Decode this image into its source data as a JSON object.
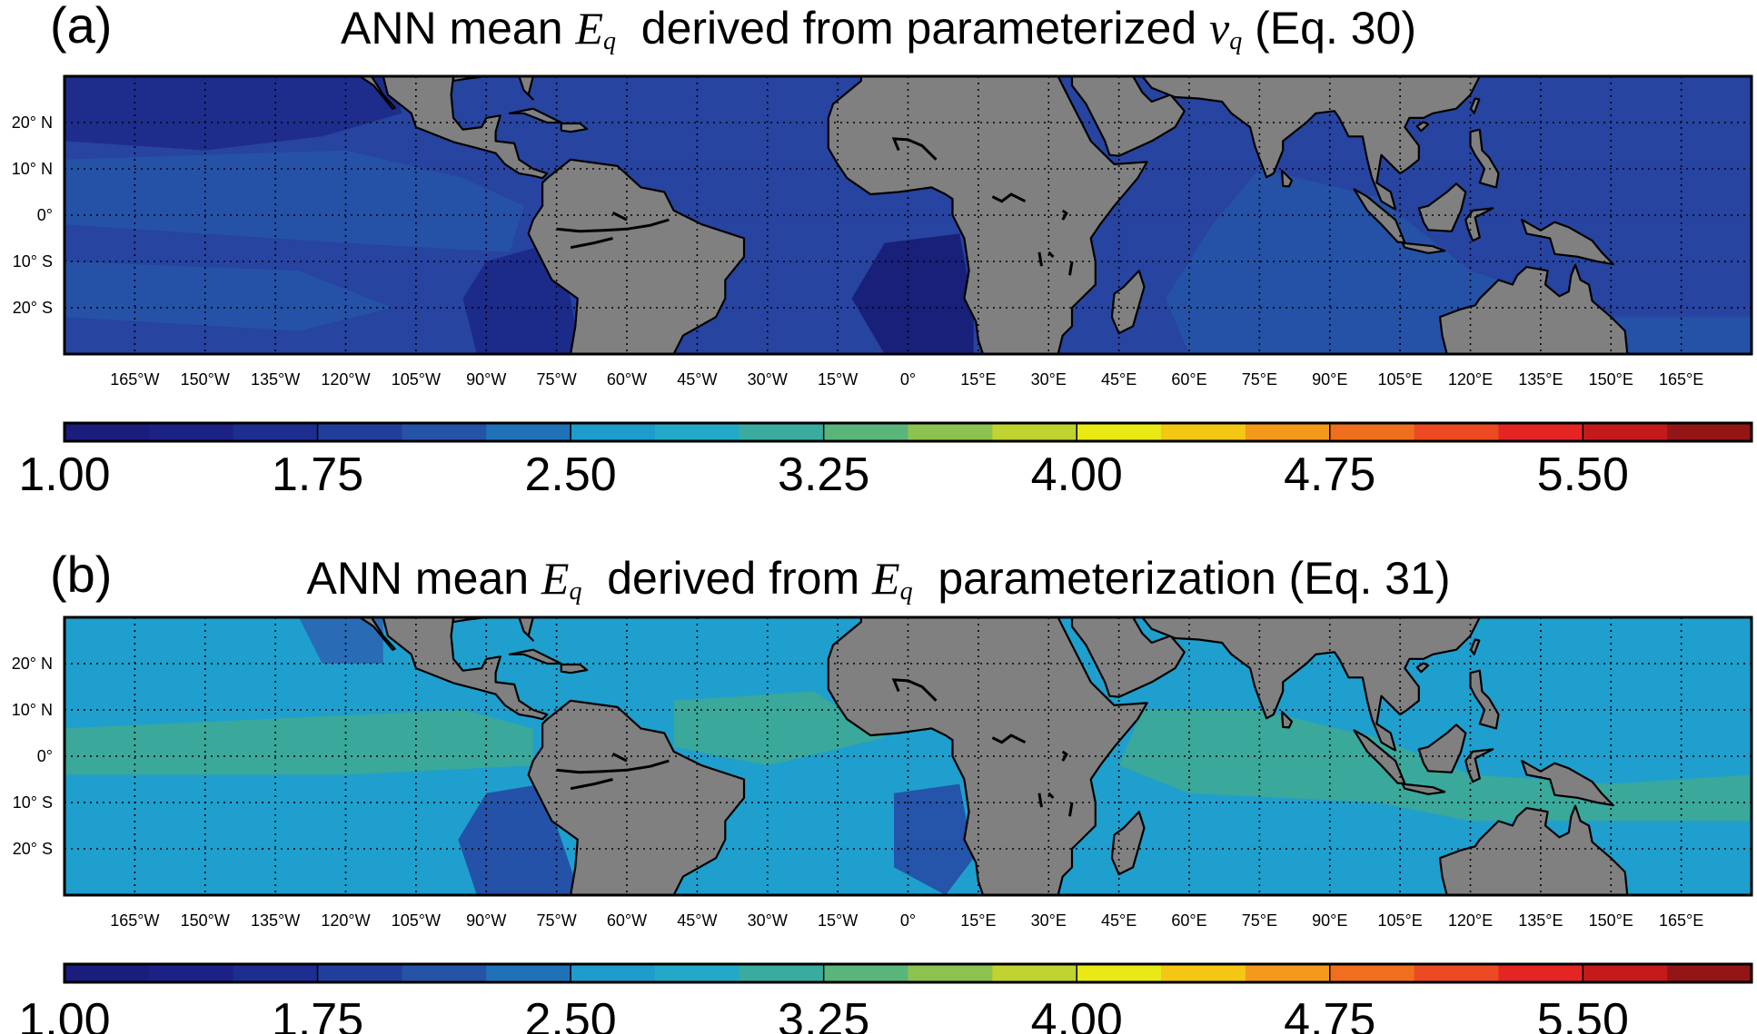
{
  "panels": [
    {
      "id": "a",
      "label": "(a)",
      "title_pre": "ANN mean ",
      "title_var": "E",
      "title_sub": "q",
      "title_mid": "  derived from parameterized ",
      "title_var2": "v",
      "title_sub2": "q",
      "title_post": " (Eq. 30)",
      "ocean_base": "#2744a0",
      "ocean_patches": [
        {
          "name": "north-pacific-low",
          "color": "#1e2d8c"
        },
        {
          "name": "east-pacific-band",
          "color": "#2552a6"
        },
        {
          "name": "south-atlantic-low",
          "color": "#182079"
        },
        {
          "name": "peru-low",
          "color": "#1c2a8a"
        }
      ]
    },
    {
      "id": "b",
      "label": "(b)",
      "title_pre": "ANN mean ",
      "title_var": "E",
      "title_sub": "q",
      "title_mid": "  derived from ",
      "title_var2": "E",
      "title_sub2": "q",
      "title_post": "  parameterization (Eq. 31)",
      "ocean_base": "#1f9fcd",
      "ocean_patches": [
        {
          "name": "tropical-band",
          "color": "#3aa89a"
        },
        {
          "name": "north-pacific-low",
          "color": "#2a6bb5"
        },
        {
          "name": "peru-low",
          "color": "#2452a8"
        },
        {
          "name": "angola-low",
          "color": "#2455aa"
        }
      ]
    }
  ],
  "map_data": {
    "lon_ticks": [
      "165°W",
      "150°W",
      "135°W",
      "120°W",
      "105°W",
      "90°W",
      "75°W",
      "60°W",
      "45°W",
      "30°W",
      "15°W",
      "0°",
      "15°E",
      "30°E",
      "45°E",
      "60°E",
      "75°E",
      "90°E",
      "105°E",
      "120°E",
      "135°E",
      "150°E",
      "165°E"
    ],
    "lon_values": [
      -165,
      -150,
      -135,
      -120,
      -105,
      -90,
      -75,
      -60,
      -45,
      -30,
      -15,
      0,
      15,
      30,
      45,
      60,
      75,
      90,
      105,
      120,
      135,
      150,
      165
    ],
    "lat_ticks": [
      "20° N",
      "10° N",
      "0°",
      "10° S",
      "20° S"
    ],
    "lat_values": [
      20,
      10,
      0,
      -10,
      -20
    ],
    "lon_range": [
      -180,
      180
    ],
    "lat_range": [
      -30,
      30
    ],
    "land_color": "#808080",
    "grid": "dotted"
  },
  "colorbar": {
    "labels": [
      "1.00",
      "1.75",
      "2.50",
      "3.25",
      "4.00",
      "4.75",
      "5.50"
    ],
    "values": [
      1.0,
      1.75,
      2.5,
      3.25,
      4.0,
      4.75,
      5.5
    ],
    "range": [
      1.0,
      6.0
    ],
    "colors": [
      "#1a1d7c",
      "#1c2185",
      "#1e2d90",
      "#223e9c",
      "#2553a7",
      "#2072b8",
      "#1e9ccb",
      "#23a9c7",
      "#3aac9f",
      "#5ab57a",
      "#8cc250",
      "#c0d330",
      "#e8e915",
      "#f5c715",
      "#f39a1c",
      "#f06f1f",
      "#ec4a22",
      "#e52424",
      "#c41a1c",
      "#941515"
    ]
  }
}
